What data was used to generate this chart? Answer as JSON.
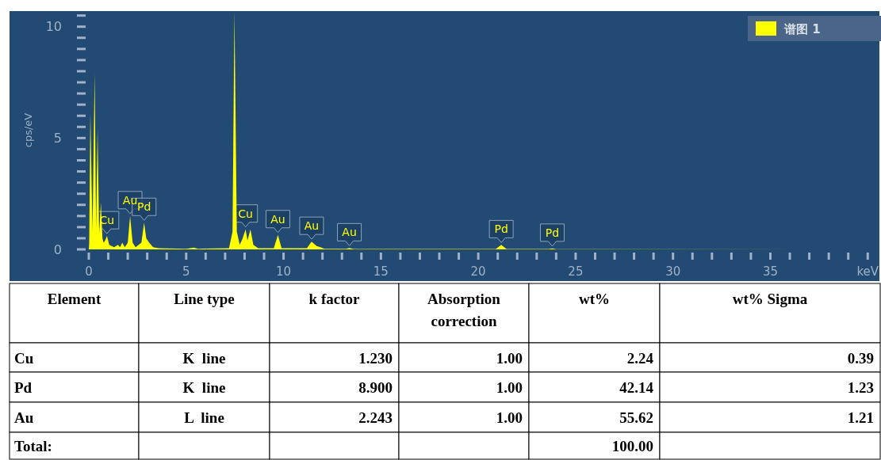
{
  "chart_data": [
    {
      "type": "area",
      "ylabel": "cps/eV",
      "xlim": [
        0,
        40.6
      ],
      "ylim": [
        0,
        10.7
      ],
      "xticks": [
        0,
        {
          "value": 1,
          "label": null
        },
        {
          "value": 2,
          "label": null
        },
        {
          "value": 3,
          "label": null
        },
        {
          "value": 4,
          "label": null
        },
        5,
        {
          "value": 6,
          "label": null
        },
        {
          "value": 7,
          "label": null
        },
        {
          "value": 8,
          "label": null
        },
        {
          "value": 9,
          "label": null
        },
        10,
        {
          "value": 11,
          "label": null
        },
        {
          "value": 12,
          "label": null
        },
        {
          "value": 13,
          "label": null
        },
        {
          "value": 14,
          "label": null
        },
        15,
        {
          "value": 16,
          "label": null
        },
        {
          "value": 17,
          "label": null
        },
        {
          "value": 18,
          "label": null
        },
        {
          "value": 19,
          "label": null
        },
        20,
        {
          "value": 21,
          "label": null
        },
        {
          "value": 22,
          "label": null
        },
        {
          "value": 23,
          "label": null
        },
        {
          "value": 24,
          "label": null
        },
        25,
        {
          "value": 26,
          "label": null
        },
        {
          "value": 27,
          "label": null
        },
        {
          "value": 28,
          "label": null
        },
        {
          "value": 29,
          "label": null
        },
        30,
        {
          "value": 31,
          "label": null
        },
        {
          "value": 32,
          "label": null
        },
        {
          "value": 33,
          "label": null
        },
        {
          "value": 34,
          "label": null
        },
        35,
        {
          "value": 36,
          "label": null
        },
        {
          "value": 37,
          "label": null
        },
        {
          "value": 38,
          "label": null
        },
        {
          "value": 39,
          "label": null
        },
        {
          "value": 40,
          "label": "keV"
        }
      ],
      "yticks": [
        0,
        {
          "value": 0.5,
          "label": null
        },
        {
          "value": 1,
          "label": null
        },
        {
          "value": 1.5,
          "label": null
        },
        {
          "value": 2,
          "label": null
        },
        {
          "value": 2.5,
          "label": null
        },
        {
          "value": 3,
          "label": null
        },
        {
          "value": 3.5,
          "label": null
        },
        {
          "value": 4,
          "label": null
        },
        {
          "value": 4.5,
          "label": null
        },
        5,
        {
          "value": 5.5,
          "label": null
        },
        {
          "value": 6,
          "label": null
        },
        {
          "value": 6.5,
          "label": null
        },
        {
          "value": 7,
          "label": null
        },
        {
          "value": 7.5,
          "label": null
        },
        {
          "value": 8,
          "label": null
        },
        {
          "value": 8.5,
          "label": null
        },
        {
          "value": 9,
          "label": null
        },
        {
          "value": 9.5,
          "label": null
        },
        10,
        {
          "value": 10.5,
          "label": null
        }
      ],
      "legend": "top right",
      "grid": false,
      "series": [
        {
          "name": "谱图 1",
          "color": "#ffff00",
          "x": [
            0,
            0.02,
            0.08,
            0.19,
            0.3,
            0.375,
            0.45,
            0.53,
            0.62,
            0.7,
            0.76,
            0.84,
            0.93,
            1.05,
            1.3,
            1.5,
            1.6,
            1.72,
            1.85,
            2.0,
            2.12,
            2.25,
            2.4,
            2.7,
            2.84,
            2.95,
            3.1,
            3.3,
            3.6,
            5.0,
            5.4,
            5.6,
            7.2,
            7.38,
            7.48,
            7.6,
            7.75,
            7.9,
            8.05,
            8.15,
            8.3,
            8.45,
            8.7,
            9.5,
            9.71,
            9.9,
            11.2,
            11.44,
            11.7,
            11.9,
            12.1,
            13.2,
            13.38,
            13.6,
            20.9,
            21.18,
            21.45,
            23.6,
            23.8,
            24.0,
            40
          ],
          "values": [
            0,
            0.3,
            6.1,
            0.8,
            7.9,
            0.9,
            5.4,
            0.7,
            2.1,
            0.5,
            0.3,
            0.4,
            0.6,
            0.2,
            0.1,
            0.2,
            0.1,
            0.3,
            0.1,
            0.3,
            1.5,
            0.3,
            0.1,
            0.3,
            1.2,
            0.5,
            0.3,
            0.1,
            0.05,
            0.03,
            0.08,
            0.03,
            0.05,
            0.8,
            10.7,
            0.8,
            0.2,
            0.5,
            0.9,
            0.4,
            0.9,
            0.2,
            0.05,
            0.05,
            0.65,
            0.05,
            0.05,
            0.35,
            0.15,
            0.1,
            0.03,
            0.03,
            0.06,
            0.02,
            0.02,
            0.2,
            0.02,
            0.02,
            0.04,
            0.01,
            0
          ]
        }
      ],
      "annotations": [
        {
          "text": "Cu",
          "x": 0.93,
          "y": 0.6
        },
        {
          "text": "Au",
          "x": 2.12,
          "y": 1.5
        },
        {
          "text": "Pd",
          "x": 2.84,
          "y": 1.2
        },
        {
          "text": "Cu",
          "x": 8.05,
          "y": 0.9
        },
        {
          "text": "Au",
          "x": 9.71,
          "y": 0.65
        },
        {
          "text": "Au",
          "x": 11.44,
          "y": 0.35
        },
        {
          "text": "Au",
          "x": 13.38,
          "y": 0.06
        },
        {
          "text": "Pd",
          "x": 21.18,
          "y": 0.2
        },
        {
          "text": "Pd",
          "x": 23.8,
          "y": 0.04
        }
      ]
    },
    {
      "type": "other",
      "categories": [
        "Element",
        "Line type",
        "k factor",
        "Absorption correction",
        "wt%",
        "wt% Sigma"
      ],
      "cell_labels": [
        [
          "Cu",
          "K  line",
          "1.230",
          "1.00",
          "2.24",
          "0.39"
        ],
        [
          "Pd",
          "K  line",
          "8.900",
          "1.00",
          "42.14",
          "1.23"
        ],
        [
          "Au",
          "L  line",
          "2.243",
          "1.00",
          "55.62",
          "1.21"
        ],
        [
          "Total:",
          null,
          null,
          null,
          "100.00",
          null
        ]
      ]
    }
  ]
}
